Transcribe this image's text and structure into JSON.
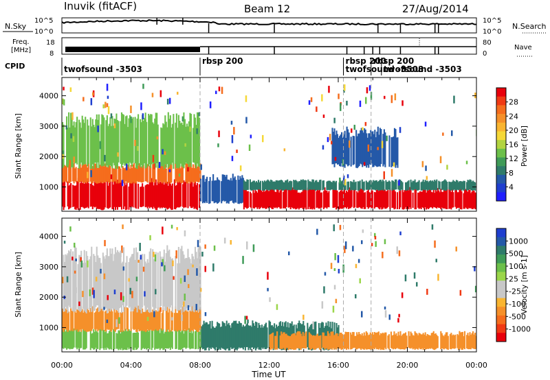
{
  "header": {
    "station": "Inuvik (fitACF)",
    "beam": "Beam 12",
    "date": "27/Aug/2014"
  },
  "strips": {
    "nsky": {
      "label": "N.Sky",
      "tick_top": "10^5",
      "tick_bottom": "10^0",
      "right_label": "N.Search",
      "right_tick_top": "10^5",
      "right_tick_bottom": "10^0"
    },
    "freq": {
      "label_line1": "Freq.",
      "label_line2": "[MHz]",
      "ticks": [
        "18",
        "8"
      ],
      "right_label": "Nave",
      "right_ticks": [
        "80",
        "0"
      ]
    },
    "cpid": {
      "label": "CPID",
      "programs": [
        {
          "name": "twofsound -3503",
          "start": 0.0
        },
        {
          "name": "rbsp 200",
          "start": 8.0
        },
        {
          "name": "rbsp 200",
          "start": 16.3
        },
        {
          "name": "twofsound -3503",
          "start": 16.3
        },
        {
          "name": "rbsp 200",
          "start": 17.9
        },
        {
          "name": "twofsound -3503",
          "start": 18.5
        }
      ]
    }
  },
  "chart_data": [
    {
      "type": "heatmap",
      "id": "power",
      "xlabel": "",
      "ylabel": "Slant Range [km]",
      "colorbar_label": "Power [dB]",
      "xlim": [
        0,
        24
      ],
      "ylim": [
        200,
        4600
      ],
      "yticks": [
        1000,
        2000,
        3000,
        4000
      ],
      "colorbar_ticks": [
        "28",
        "24",
        "20",
        "16",
        "12",
        "8",
        "4"
      ],
      "colorbar_colors": [
        "#e8000b",
        "#f03a14",
        "#f56d1d",
        "#f5902a",
        "#f9b531",
        "#f5d838",
        "#b2d440",
        "#6cc04a",
        "#3f9b58",
        "#2f7b6a",
        "#2459a8",
        "#1f3fcf",
        "#1f1fff"
      ],
      "regions": [
        {
          "x0": 0.0,
          "x1": 8.0,
          "y0": 300,
          "y1": 1150,
          "color": "#e8000b"
        },
        {
          "x0": 0.0,
          "x1": 8.0,
          "y0": 1150,
          "y1": 1700,
          "color": "#f56d1d"
        },
        {
          "x0": 0.0,
          "x1": 8.0,
          "y0": 1700,
          "y1": 3200,
          "color": "#6cc04a"
        },
        {
          "x0": 8.0,
          "x1": 10.5,
          "y0": 500,
          "y1": 1300,
          "color": "#2459a8"
        },
        {
          "x0": 10.5,
          "x1": 24.0,
          "y0": 300,
          "y1": 900,
          "color": "#e8000b"
        },
        {
          "x0": 10.5,
          "x1": 24.0,
          "y0": 900,
          "y1": 1200,
          "color": "#2f7b6a"
        },
        {
          "x0": 15.5,
          "x1": 19.5,
          "y0": 1700,
          "y1": 2800,
          "color": "#2459a8"
        }
      ]
    },
    {
      "type": "heatmap",
      "id": "velocity",
      "xlabel": "Time UT",
      "ylabel": "Slant Range [km]",
      "colorbar_label": "Velocity [m s-1]",
      "xlim": [
        0,
        24
      ],
      "ylim": [
        200,
        4600
      ],
      "yticks": [
        1000,
        2000,
        3000,
        4000
      ],
      "xticks": [
        "00:00",
        "04:00",
        "08:00",
        "12:00",
        "16:00",
        "20:00",
        "00:00"
      ],
      "colorbar_ticks": [
        "1000",
        "500",
        "100",
        "25",
        "-25",
        "-100",
        "-500",
        "-1000"
      ],
      "colorbar_colors": [
        "#1f3fcf",
        "#2459a8",
        "#2f7b6a",
        "#3f9b58",
        "#6cc04a",
        "#9bd64a",
        "#c8c8c8",
        "#c8c8c8",
        "#f9b531",
        "#f5902a",
        "#f56d1d",
        "#f03a14",
        "#e8000b"
      ],
      "regions": [
        {
          "x0": 0.0,
          "x1": 8.0,
          "y0": 300,
          "y1": 900,
          "color": "#6cc04a"
        },
        {
          "x0": 0.0,
          "x1": 8.0,
          "y0": 900,
          "y1": 1600,
          "color": "#f5902a"
        },
        {
          "x0": 0.0,
          "x1": 8.0,
          "y0": 1600,
          "y1": 3400,
          "color": "#c8c8c8"
        },
        {
          "x0": 8.0,
          "x1": 16.0,
          "y0": 300,
          "y1": 1100,
          "color": "#2f7b6a"
        },
        {
          "x0": 12.0,
          "x1": 24.0,
          "y0": 300,
          "y1": 800,
          "color": "#f5902a"
        }
      ]
    }
  ],
  "dashed_lines_hours": [
    8.0,
    16.3,
    17.9
  ]
}
